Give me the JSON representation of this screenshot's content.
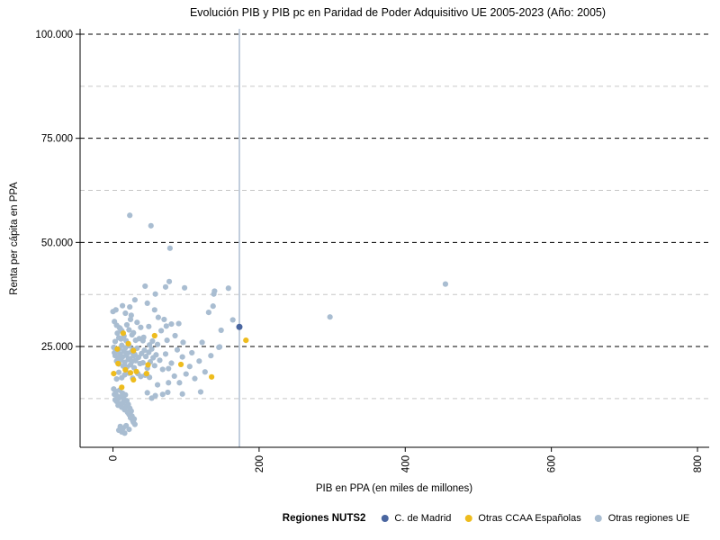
{
  "title": "Evolución PIB y PIB pc en Paridad de Poder Adquisitivo UE 2005-2023 (Año: 2005)",
  "axes": {
    "x_label": "PIB en PPA (en miles de millones)",
    "y_label": "Renta per cápita en PPA",
    "x_ticks": [
      {
        "value": 0,
        "label": "0"
      },
      {
        "value": 200,
        "label": "200"
      },
      {
        "value": 400,
        "label": "400"
      },
      {
        "value": 600,
        "label": "600"
      },
      {
        "value": 800,
        "label": "800"
      }
    ],
    "y_ticks": [
      {
        "value": 25000,
        "label": "25.000"
      },
      {
        "value": 50000,
        "label": "50.000"
      },
      {
        "value": 75000,
        "label": "75.000"
      },
      {
        "value": 100000,
        "label": "100.000"
      }
    ],
    "y_minor_gridlines": [
      12500,
      37500,
      62500,
      87500
    ]
  },
  "colors": {
    "madrid": "#4a66a0",
    "ccaa": "#eebc1d",
    "eu": "#a9bdd1",
    "reference_line": "#a8b9cf",
    "major_grid": "#000000",
    "minor_grid": "#c6c6c6"
  },
  "legend": {
    "title": "Regiones NUTS2",
    "items": [
      {
        "label": "C. de Madrid",
        "color": "#4a66a0"
      },
      {
        "label": "Otras CCAA Españolas",
        "color": "#eebc1d"
      },
      {
        "label": "Otras regiones UE",
        "color": "#a9bdd1"
      }
    ]
  },
  "chart_data": {
    "type": "scatter",
    "title": "Evolución PIB y PIB pc en Paridad de Poder Adquisitivo UE 2005-2023 (Año: 2005)",
    "xlabel": "PIB en PPA (en miles de millones)",
    "ylabel": "Renta per cápita en PPA",
    "xlim": [
      -45,
      816
    ],
    "ylim": [
      800,
      101300
    ],
    "grid": "dashed horizontal, major black + minor gray",
    "legend_position": "bottom",
    "reference_line_x": 173,
    "series": [
      {
        "name": "C. de Madrid",
        "color": "#4a66a0",
        "points": [
          [
            173,
            29700
          ]
        ]
      },
      {
        "name": "Otras CCAA Españolas",
        "color": "#eebc1d",
        "points": [
          [
            182,
            26500
          ],
          [
            57,
            27600
          ],
          [
            14,
            28200
          ],
          [
            21,
            25700
          ],
          [
            28,
            24000
          ],
          [
            6,
            24400
          ],
          [
            7,
            20900
          ],
          [
            17,
            19400
          ],
          [
            24,
            18700
          ],
          [
            32,
            19000
          ],
          [
            48,
            20600
          ],
          [
            46,
            18500
          ],
          [
            93,
            20700
          ],
          [
            135,
            17700
          ],
          [
            12,
            15200
          ],
          [
            28,
            17000
          ],
          [
            1,
            18500
          ]
        ]
      },
      {
        "name": "Otras regiones UE",
        "color": "#a9bdd1",
        "points": [
          [
            23,
            56500
          ],
          [
            52,
            54000
          ],
          [
            78,
            48600
          ],
          [
            455,
            40000
          ],
          [
            297,
            32100
          ],
          [
            158,
            39000
          ],
          [
            139,
            38300
          ],
          [
            138,
            37600
          ],
          [
            137,
            34700
          ],
          [
            98,
            39100
          ],
          [
            77,
            40600
          ],
          [
            72,
            39300
          ],
          [
            58,
            37600
          ],
          [
            44,
            39500
          ],
          [
            131,
            33200
          ],
          [
            164,
            31400
          ],
          [
            148,
            28900
          ],
          [
            146,
            24900
          ],
          [
            145,
            24800
          ],
          [
            122,
            26000
          ],
          [
            108,
            23500
          ],
          [
            0,
            33400
          ],
          [
            4,
            33800
          ],
          [
            13,
            34800
          ],
          [
            30,
            36200
          ],
          [
            47,
            35400
          ],
          [
            2,
            31000
          ],
          [
            5,
            30100
          ],
          [
            9,
            29500
          ],
          [
            12,
            28800
          ],
          [
            6,
            28200
          ],
          [
            15,
            27500
          ],
          [
            19,
            30200
          ],
          [
            22,
            29000
          ],
          [
            28,
            28300
          ],
          [
            33,
            30800
          ],
          [
            38,
            29600
          ],
          [
            42,
            27200
          ],
          [
            31,
            26500
          ],
          [
            26,
            27800
          ],
          [
            11,
            26800
          ],
          [
            8,
            27100
          ],
          [
            3,
            26200
          ],
          [
            18,
            26400
          ],
          [
            24,
            31500
          ],
          [
            36,
            26900
          ],
          [
            49,
            29800
          ],
          [
            54,
            26300
          ],
          [
            66,
            28800
          ],
          [
            74,
            26500
          ],
          [
            85,
            27600
          ],
          [
            23,
            34500
          ],
          [
            17,
            33000
          ],
          [
            25,
            32500
          ],
          [
            57,
            33800
          ],
          [
            62,
            32000
          ],
          [
            70,
            31500
          ],
          [
            90,
            30500
          ],
          [
            73,
            29900
          ],
          [
            80,
            30400
          ],
          [
            10,
            29300
          ],
          [
            1,
            24800
          ],
          [
            2,
            23500
          ],
          [
            3,
            22800
          ],
          [
            4,
            24200
          ],
          [
            5,
            21500
          ],
          [
            6,
            23800
          ],
          [
            7,
            22200
          ],
          [
            8,
            20800
          ],
          [
            9,
            24500
          ],
          [
            10,
            23200
          ],
          [
            11,
            21800
          ],
          [
            12,
            25300
          ],
          [
            13,
            22500
          ],
          [
            14,
            20300
          ],
          [
            15,
            23900
          ],
          [
            16,
            21200
          ],
          [
            17,
            24700
          ],
          [
            18,
            22900
          ],
          [
            19,
            20100
          ],
          [
            20,
            23400
          ],
          [
            21,
            21900
          ],
          [
            22,
            25200
          ],
          [
            23,
            22100
          ],
          [
            24,
            20600
          ],
          [
            25,
            23700
          ],
          [
            26,
            21400
          ],
          [
            27,
            24300
          ],
          [
            28,
            22700
          ],
          [
            29,
            19900
          ],
          [
            30,
            23100
          ],
          [
            31,
            21600
          ],
          [
            33,
            24600
          ],
          [
            35,
            22400
          ],
          [
            37,
            20900
          ],
          [
            39,
            23300
          ],
          [
            41,
            21100
          ],
          [
            43,
            24100
          ],
          [
            45,
            22600
          ],
          [
            47,
            19800
          ],
          [
            49,
            23600
          ],
          [
            51,
            21300
          ],
          [
            53,
            24400
          ],
          [
            55,
            22300
          ],
          [
            57,
            20400
          ],
          [
            59,
            23000
          ],
          [
            34,
            18500
          ],
          [
            38,
            17800
          ],
          [
            16,
            18200
          ],
          [
            12,
            17500
          ],
          [
            8,
            18800
          ],
          [
            5,
            17200
          ],
          [
            22,
            18600
          ],
          [
            27,
            17400
          ],
          [
            44,
            18100
          ],
          [
            50,
            17600
          ],
          [
            41,
            26400
          ],
          [
            50,
            25400
          ],
          [
            61,
            25500
          ],
          [
            64,
            21700
          ],
          [
            68,
            19500
          ],
          [
            72,
            23200
          ],
          [
            76,
            19700
          ],
          [
            76,
            16300
          ],
          [
            80,
            21000
          ],
          [
            84,
            17900
          ],
          [
            88,
            24200
          ],
          [
            91,
            16300
          ],
          [
            95,
            22500
          ],
          [
            100,
            18400
          ],
          [
            105,
            20200
          ],
          [
            112,
            17300
          ],
          [
            118,
            21500
          ],
          [
            126,
            18900
          ],
          [
            134,
            22800
          ],
          [
            61,
            15800
          ],
          [
            96,
            26000
          ],
          [
            1,
            14800
          ],
          [
            2,
            13500
          ],
          [
            3,
            12200
          ],
          [
            4,
            14200
          ],
          [
            5,
            11800
          ],
          [
            6,
            13100
          ],
          [
            7,
            10900
          ],
          [
            8,
            12600
          ],
          [
            9,
            14500
          ],
          [
            10,
            11300
          ],
          [
            11,
            12900
          ],
          [
            12,
            10400
          ],
          [
            13,
            13800
          ],
          [
            14,
            11600
          ],
          [
            15,
            12300
          ],
          [
            16,
            9800
          ],
          [
            17,
            13400
          ],
          [
            18,
            10700
          ],
          [
            19,
            12000
          ],
          [
            20,
            9200
          ],
          [
            21,
            11100
          ],
          [
            22,
            8700
          ],
          [
            23,
            10200
          ],
          [
            24,
            7900
          ],
          [
            25,
            9500
          ],
          [
            26,
            8300
          ],
          [
            27,
            7200
          ],
          [
            28,
            6800
          ],
          [
            29,
            7600
          ],
          [
            30,
            6300
          ],
          [
            18,
            6000
          ],
          [
            14,
            5400
          ],
          [
            10,
            5800
          ],
          [
            8,
            4900
          ],
          [
            12,
            4500
          ],
          [
            16,
            4200
          ],
          [
            22,
            5100
          ],
          [
            53,
            12600
          ],
          [
            68,
            13500
          ],
          [
            75,
            14000
          ],
          [
            58,
            13200
          ],
          [
            47,
            13900
          ],
          [
            95,
            13600
          ],
          [
            120,
            14100
          ]
        ]
      }
    ]
  }
}
